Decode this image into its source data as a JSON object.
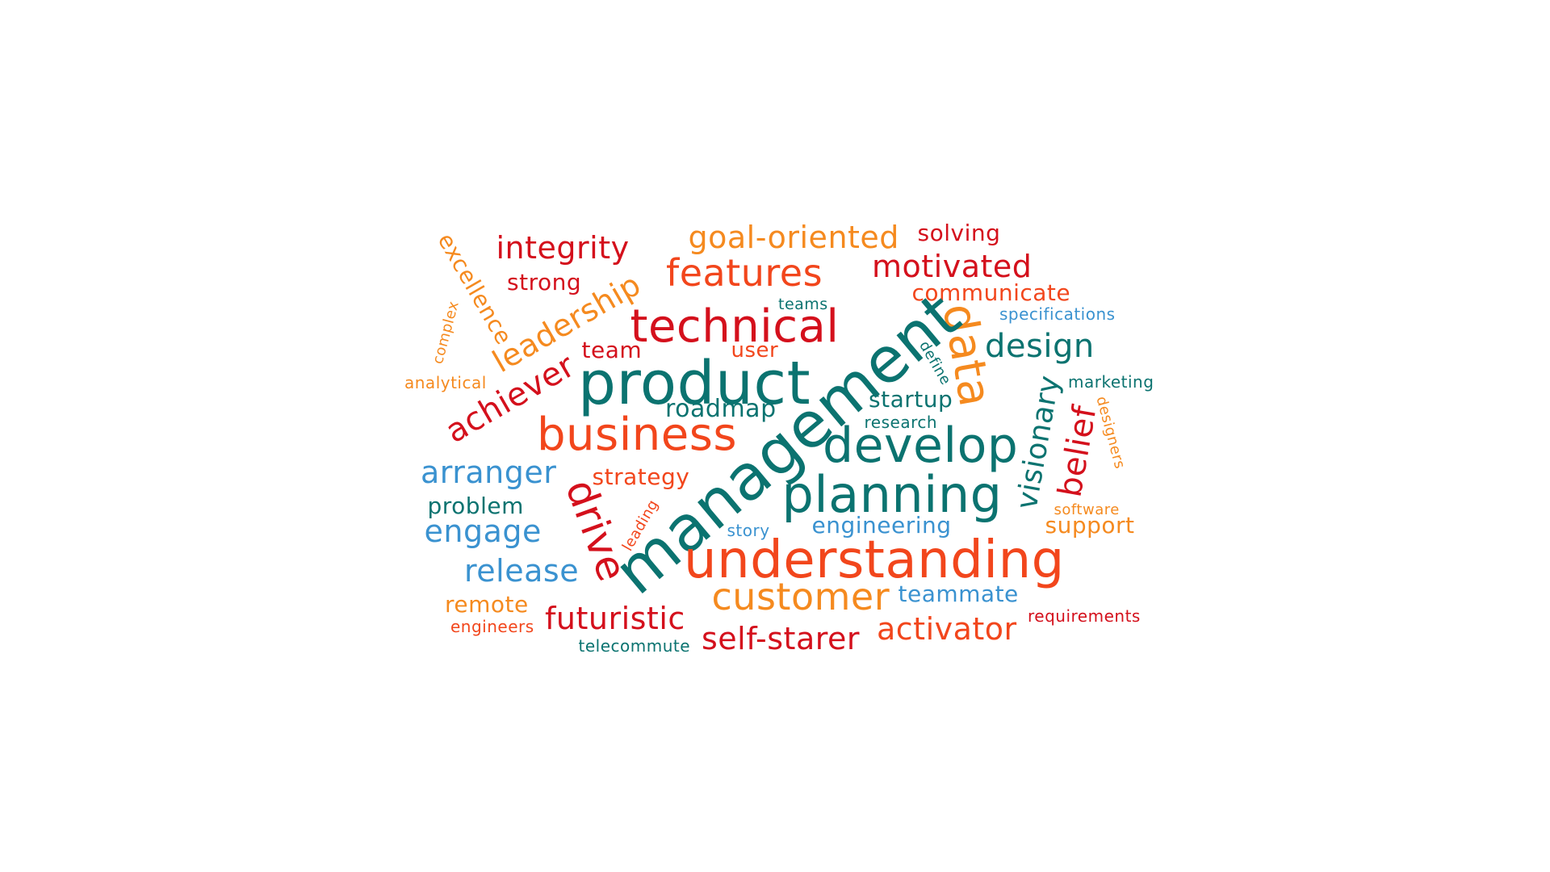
{
  "colors": {
    "red": "#d4101c",
    "orange_red": "#f2461c",
    "orange": "#f58a1f",
    "teal": "#0b7370",
    "blue": "#3a92d0"
  },
  "words": [
    {
      "text": "goal-oriented",
      "color": "orange"
    },
    {
      "text": "solving",
      "color": "red"
    },
    {
      "text": "integrity",
      "color": "red"
    },
    {
      "text": "excellence",
      "color": "orange"
    },
    {
      "text": "features",
      "color": "orange_red"
    },
    {
      "text": "motivated",
      "color": "red"
    },
    {
      "text": "strong",
      "color": "red"
    },
    {
      "text": "leadership",
      "color": "orange"
    },
    {
      "text": "communicate",
      "color": "orange_red"
    },
    {
      "text": "teams",
      "color": "teal"
    },
    {
      "text": "specifications",
      "color": "blue"
    },
    {
      "text": "technical",
      "color": "red"
    },
    {
      "text": "complex",
      "color": "orange"
    },
    {
      "text": "data",
      "color": "orange"
    },
    {
      "text": "design",
      "color": "teal"
    },
    {
      "text": "team",
      "color": "red"
    },
    {
      "text": "user",
      "color": "orange_red"
    },
    {
      "text": "define",
      "color": "teal"
    },
    {
      "text": "analytical",
      "color": "orange"
    },
    {
      "text": "product",
      "color": "teal"
    },
    {
      "text": "achiever",
      "color": "red"
    },
    {
      "text": "marketing",
      "color": "teal"
    },
    {
      "text": "management",
      "color": "teal"
    },
    {
      "text": "startup",
      "color": "teal"
    },
    {
      "text": "roadmap",
      "color": "teal"
    },
    {
      "text": "visionary",
      "color": "teal"
    },
    {
      "text": "designers",
      "color": "orange"
    },
    {
      "text": "research",
      "color": "teal"
    },
    {
      "text": "business",
      "color": "orange_red"
    },
    {
      "text": "belief",
      "color": "red"
    },
    {
      "text": "develop",
      "color": "teal"
    },
    {
      "text": "arranger",
      "color": "blue"
    },
    {
      "text": "strategy",
      "color": "orange_red"
    },
    {
      "text": "planning",
      "color": "teal"
    },
    {
      "text": "drive",
      "color": "red"
    },
    {
      "text": "problem",
      "color": "teal"
    },
    {
      "text": "software",
      "color": "orange"
    },
    {
      "text": "leading",
      "color": "orange_red"
    },
    {
      "text": "engage",
      "color": "blue"
    },
    {
      "text": "story",
      "color": "blue"
    },
    {
      "text": "engineering",
      "color": "blue"
    },
    {
      "text": "support",
      "color": "orange"
    },
    {
      "text": "understanding",
      "color": "orange_red"
    },
    {
      "text": "release",
      "color": "blue"
    },
    {
      "text": "customer",
      "color": "orange"
    },
    {
      "text": "teammate",
      "color": "blue"
    },
    {
      "text": "remote",
      "color": "orange"
    },
    {
      "text": "futuristic",
      "color": "red"
    },
    {
      "text": "requirements",
      "color": "red"
    },
    {
      "text": "engineers",
      "color": "orange_red"
    },
    {
      "text": "activator",
      "color": "orange_red"
    },
    {
      "text": "self-starer",
      "color": "red"
    },
    {
      "text": "telecommute",
      "color": "teal"
    }
  ]
}
